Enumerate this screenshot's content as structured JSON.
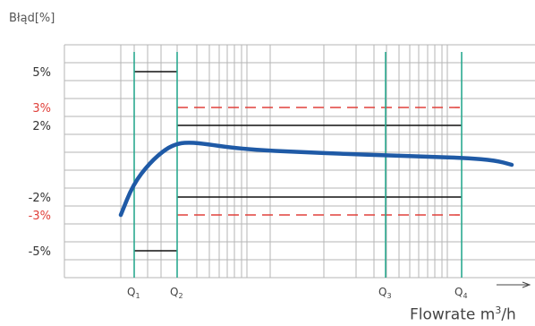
{
  "chart_data": {
    "type": "line",
    "title": "",
    "ylabel": "Błąd[%]",
    "xlabel_text": "Flowrate  m",
    "xlabel_sup": "3",
    "xlabel_tail": "/h",
    "ylim": [
      -6.5,
      6.5
    ],
    "y_ticks": [
      {
        "label": "5%",
        "value": 5,
        "color": "#333333"
      },
      {
        "label": "3%",
        "value": 3,
        "color": "#e0413b"
      },
      {
        "label": "2%",
        "value": 2,
        "color": "#333333"
      },
      {
        "label": "-2%",
        "value": -2,
        "color": "#333333"
      },
      {
        "label": "-3%",
        "value": -3,
        "color": "#e0413b"
      },
      {
        "label": "-5%",
        "value": -5,
        "color": "#333333"
      }
    ],
    "flow_markers": [
      {
        "letter": "Q",
        "sub": "1"
      },
      {
        "letter": "Q",
        "sub": "2"
      },
      {
        "letter": "Q",
        "sub": "3"
      },
      {
        "letter": "Q",
        "sub": "4"
      }
    ],
    "limits": [
      {
        "name": "inner",
        "from": "Q1",
        "to": "Q2",
        "upper": 5,
        "lower": -5,
        "color": "#111111",
        "style": "solid"
      },
      {
        "name": "outer",
        "from": "Q2",
        "to": "Q4",
        "upper": 2,
        "lower": -2,
        "color": "#111111",
        "style": "solid"
      },
      {
        "name": "outer-extended",
        "from": "Q2",
        "to": "Q4",
        "upper": 3,
        "lower": -3,
        "color": "#e0413b",
        "style": "dashed"
      }
    ],
    "series": [
      {
        "color": "#1f5aa6",
        "points": [
          [
            0.0,
            -3.0
          ],
          [
            0.03,
            -1.3
          ],
          [
            0.07,
            -0.1
          ],
          [
            0.11,
            0.7
          ],
          [
            0.14,
            1.0
          ],
          [
            0.17,
            1.05
          ],
          [
            0.21,
            0.95
          ],
          [
            0.27,
            0.75
          ],
          [
            0.35,
            0.6
          ],
          [
            0.45,
            0.5
          ],
          [
            0.55,
            0.4
          ],
          [
            0.65,
            0.32
          ],
          [
            0.75,
            0.25
          ],
          [
            0.84,
            0.18
          ],
          [
            0.91,
            0.05
          ],
          [
            0.95,
            -0.2
          ]
        ]
      }
    ],
    "grid": true,
    "colors": {
      "grid": "#b5b5b5",
      "marker_line": "#2aa98f",
      "text": "#333333"
    }
  }
}
